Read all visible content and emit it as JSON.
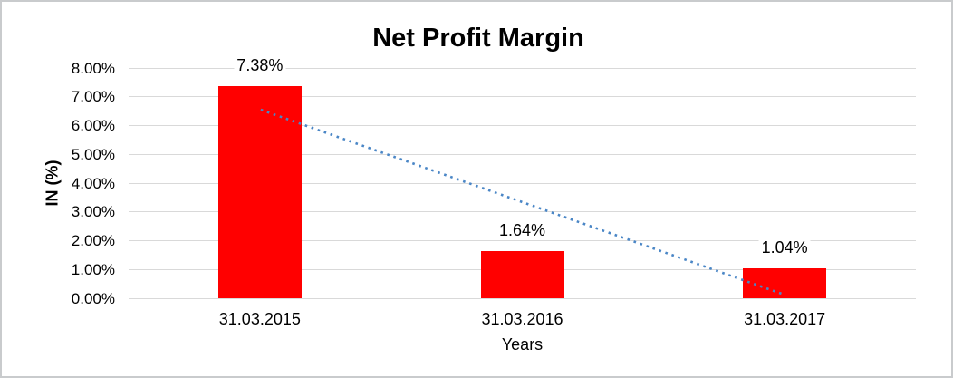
{
  "window": {
    "background": "#FFFFFF",
    "border_color": "#C9CBCD"
  },
  "chart_data": {
    "type": "bar",
    "title": "Net Profit Margin",
    "xlabel": "Years",
    "ylabel": "IN (%)",
    "categories": [
      "31.03.2015",
      "31.03.2016",
      "31.03.2017"
    ],
    "values": [
      7.38,
      1.64,
      1.04
    ],
    "data_labels": [
      "7.38%",
      "1.64%",
      "1.04%"
    ],
    "ylim": [
      0,
      8
    ],
    "y_tick_step": 1,
    "y_tick_labels": [
      "8.00%",
      "7.00%",
      "6.00%",
      "5.00%",
      "4.00%",
      "3.00%",
      "2.00%",
      "1.00%",
      "0.00%"
    ],
    "grid": true,
    "legend": false,
    "bar_color": "#FF0000",
    "grid_color": "#D9D9D9",
    "label_color": "#000000",
    "trendline": {
      "type": "linear",
      "line_style": "dotted",
      "color": "#4A86C6",
      "start_value": 6.55,
      "end_value": 0.12
    }
  }
}
